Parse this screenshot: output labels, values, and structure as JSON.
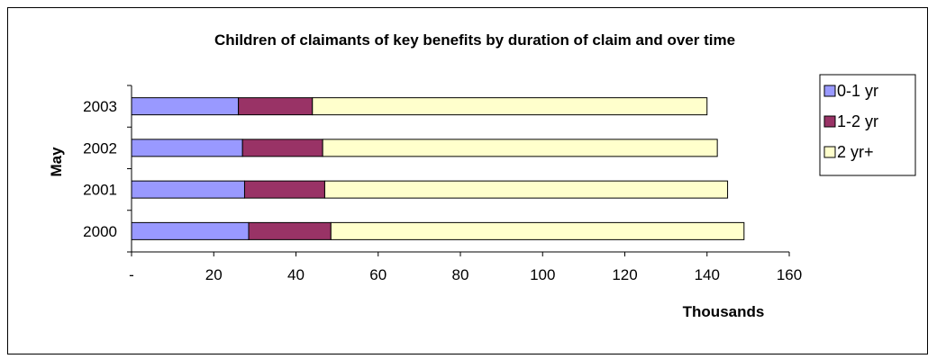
{
  "chart_data": {
    "type": "bar",
    "orientation": "horizontal",
    "stacked": true,
    "title": "Children of claimants of key benefits by duration of claim and over time",
    "xlabel": "Thousands",
    "ylabel": "May",
    "categories": [
      "2003",
      "2002",
      "2001",
      "2000"
    ],
    "series": [
      {
        "name": "0-1 yr",
        "color": "#9999FF",
        "values": [
          26,
          27,
          27.5,
          28.5
        ]
      },
      {
        "name": "1-2 yr",
        "color": "#993366",
        "values": [
          18,
          19.5,
          19.5,
          20
        ]
      },
      {
        "name": "2 yr+",
        "color": "#FFFFCC",
        "values": [
          96,
          96,
          98,
          100.5
        ]
      }
    ],
    "xlim": [
      0,
      160
    ],
    "xticks": [
      0,
      20,
      40,
      60,
      80,
      100,
      120,
      140,
      160
    ],
    "xtick_labels": [
      "-",
      "20",
      "40",
      "60",
      "80",
      "100",
      "120",
      "140",
      "160"
    ],
    "grid": false,
    "legend": "right"
  }
}
